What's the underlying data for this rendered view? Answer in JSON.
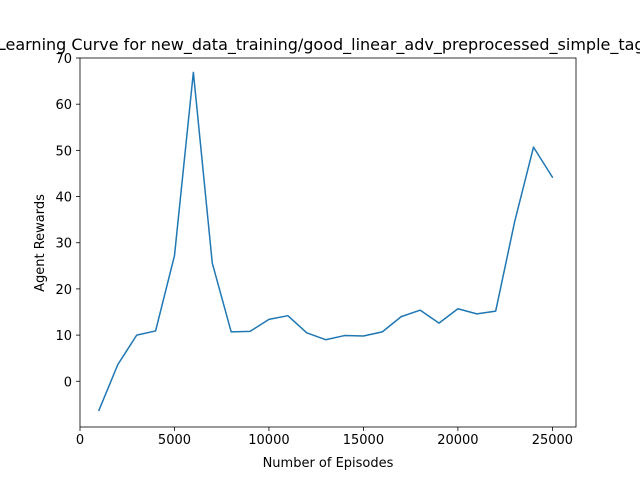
{
  "chart_data": {
    "type": "line",
    "title": "Learning Curve for new_data_training/good_linear_adv_preprocessed_simple_tag_r",
    "xlabel": "Number of Episodes",
    "ylabel": "Agent Rewards",
    "xlim": [
      0,
      26250
    ],
    "ylim": [
      -9.9,
      70
    ],
    "xticks": [
      0,
      5000,
      10000,
      15000,
      20000,
      25000
    ],
    "xtick_labels": [
      "0",
      "5000",
      "10000",
      "15000",
      "20000",
      "25000"
    ],
    "yticks": [
      0,
      10,
      20,
      30,
      40,
      50,
      60,
      70
    ],
    "ytick_labels": [
      "0",
      "10",
      "20",
      "30",
      "40",
      "50",
      "60",
      "70"
    ],
    "grid": false,
    "series": [
      {
        "color": "#1f77b4",
        "x": [
          1000,
          2000,
          3000,
          4000,
          5000,
          6000,
          7000,
          8000,
          9000,
          10000,
          11000,
          12000,
          13000,
          14000,
          15000,
          16000,
          17000,
          18000,
          19000,
          20000,
          21000,
          22000,
          23000,
          24000,
          25000
        ],
        "y": [
          -6.3,
          3.6,
          10.0,
          10.9,
          27.2,
          66.9,
          25.6,
          10.7,
          10.8,
          13.4,
          14.2,
          10.5,
          9.0,
          9.9,
          9.8,
          10.7,
          14.0,
          15.4,
          12.6,
          15.7,
          14.6,
          15.2,
          34.5,
          50.7,
          44.2
        ]
      }
    ]
  }
}
